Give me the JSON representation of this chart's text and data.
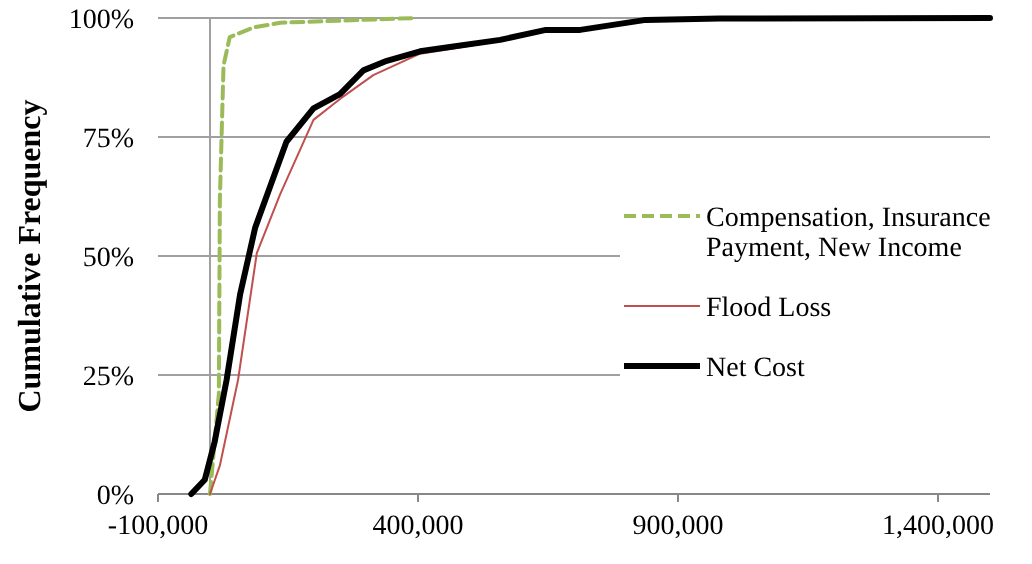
{
  "chart_data": {
    "type": "line",
    "ylabel": "Cumulative  Frequency",
    "xlim": [
      -100000,
      1500000
    ],
    "ylim": [
      0,
      100
    ],
    "xticks": [
      {
        "value": -100000,
        "label": "-100,000"
      },
      {
        "value": 400000,
        "label": "400,000"
      },
      {
        "value": 900000,
        "label": "900,000"
      },
      {
        "value": 1400000,
        "label": "1,400,000"
      }
    ],
    "yticks": [
      {
        "value": 0,
        "label": "0%"
      },
      {
        "value": 25,
        "label": "25%"
      },
      {
        "value": 50,
        "label": "50%"
      },
      {
        "value": 75,
        "label": "75%"
      },
      {
        "value": 100,
        "label": "100%"
      }
    ],
    "grid": "y",
    "legend": "right",
    "marker": "none",
    "series": [
      {
        "name": "Compensation, Insurance Payment, New Income",
        "color": "#9bbb59",
        "line_style": "dashed",
        "x": [
          0,
          17000,
          19000,
          26000,
          38000,
          83000,
          135000,
          397000
        ],
        "values": [
          0,
          21,
          62,
          90,
          96,
          98,
          99,
          100
        ]
      },
      {
        "name": "Flood Loss",
        "color": "#c0504d",
        "line_style": "solid",
        "x": [
          0,
          19000,
          54000,
          90000,
          135000,
          199000,
          250000,
          314000,
          404000,
          468000,
          558000
        ],
        "values": [
          0,
          6,
          24,
          50.6,
          63,
          78.6,
          83,
          88,
          92.5,
          93.6,
          95.2
        ]
      },
      {
        "name": "Net Cost",
        "color": "#000000",
        "line_style": "solid",
        "x": [
          -36000,
          -10000,
          9000,
          32000,
          58000,
          87000,
          147000,
          199000,
          250000,
          295000,
          340000,
          404000,
          468000,
          558000,
          646000,
          712000,
          838000,
          980000,
          1500000
        ],
        "values": [
          0,
          3,
          11,
          24,
          42,
          56,
          74,
          81,
          84,
          89,
          91,
          93,
          94,
          95.4,
          97.5,
          97.5,
          99.6,
          99.9,
          100
        ]
      }
    ]
  }
}
